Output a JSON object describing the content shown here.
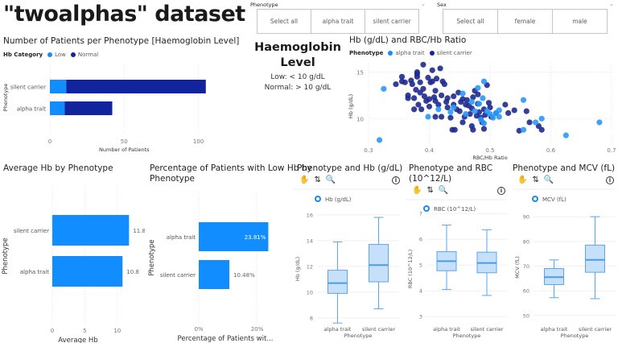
{
  "page_title": "\"twoalphas\" dataset",
  "slicers": {
    "phenotype": {
      "label": "Phenotype",
      "options": [
        "Select all",
        "alpha trait",
        "silent carrier"
      ]
    },
    "sex": {
      "label": "Sex",
      "options": [
        "Select all",
        "female",
        "male"
      ]
    }
  },
  "hb_info": {
    "title_line1": "Haemoglobin",
    "title_line2": "Level",
    "low": "Low: < 10 g/dL",
    "normal": "Normal: > 10 g/dL"
  },
  "colors": {
    "low": "#118dff",
    "normal": "#12239e",
    "box_fill": "#c6e0fa",
    "box_stroke": "#5aa5ec"
  },
  "chart_data": [
    {
      "id": "patients_per_phenotype",
      "type": "bar",
      "stacked": true,
      "orientation": "horizontal",
      "title": "Number of Patients per Phenotype [Haemoglobin Level]",
      "legend_title": "Hb Category",
      "legend": [
        "Low",
        "Normal"
      ],
      "categories": [
        "silent carrier",
        "alpha trait"
      ],
      "series": [
        {
          "name": "Low",
          "values": [
            11,
            10
          ]
        },
        {
          "name": "Normal",
          "values": [
            94,
            32
          ]
        }
      ],
      "xlabel": "Number of Patients",
      "ylabel": "Phenotype",
      "xticks": [
        0,
        50,
        100
      ],
      "xlim": [
        0,
        110
      ]
    },
    {
      "id": "hb_vs_ratio",
      "type": "scatter",
      "title": "Hb (g/dL) and RBC/Hb Ratio",
      "legend_title": "Phenotype",
      "legend": [
        "alpha trait",
        "silent carrier"
      ],
      "xlabel": "RBC/Hb Ratio",
      "ylabel": "Hb (g/dL)",
      "xlim": [
        0.3,
        0.7
      ],
      "ylim": [
        7,
        16
      ],
      "xticks": [
        0.3,
        0.4,
        0.5,
        0.6,
        0.7
      ],
      "yticks": [
        10,
        15
      ],
      "series": [
        {
          "name": "alpha trait",
          "points": [
            [
              0.318,
              7.7
            ],
            [
              0.325,
              13.2
            ],
            [
              0.398,
              10.2
            ],
            [
              0.415,
              11.0
            ],
            [
              0.435,
              10.7
            ],
            [
              0.44,
              11.2
            ],
            [
              0.455,
              12.7
            ],
            [
              0.46,
              10.5
            ],
            [
              0.47,
              11.8
            ],
            [
              0.475,
              10.8
            ],
            [
              0.48,
              13.3
            ],
            [
              0.482,
              11.6
            ],
            [
              0.485,
              9.9
            ],
            [
              0.488,
              12.2
            ],
            [
              0.49,
              14.0
            ],
            [
              0.49,
              9.5
            ],
            [
              0.495,
              10.8
            ],
            [
              0.5,
              10.5
            ],
            [
              0.505,
              10.1
            ],
            [
              0.51,
              10.6
            ],
            [
              0.515,
              10.2
            ],
            [
              0.515,
              10.9
            ],
            [
              0.555,
              12.0
            ],
            [
              0.555,
              8.8
            ],
            [
              0.575,
              9.6
            ],
            [
              0.585,
              10.0
            ],
            [
              0.625,
              8.2
            ],
            [
              0.68,
              9.6
            ]
          ]
        },
        {
          "name": "silent carrier",
          "points": [
            [
              0.345,
              13.7
            ],
            [
              0.355,
              14.0
            ],
            [
              0.355,
              14.5
            ],
            [
              0.36,
              13.9
            ],
            [
              0.365,
              12.5
            ],
            [
              0.365,
              12.2
            ],
            [
              0.37,
              14.1
            ],
            [
              0.372,
              13.7
            ],
            [
              0.375,
              11.0
            ],
            [
              0.375,
              12.2
            ],
            [
              0.378,
              13.1
            ],
            [
              0.38,
              14.8
            ],
            [
              0.38,
              15.0
            ],
            [
              0.38,
              14.5
            ],
            [
              0.382,
              11.5
            ],
            [
              0.385,
              12.8
            ],
            [
              0.385,
              13.9
            ],
            [
              0.387,
              11.0
            ],
            [
              0.39,
              15.8
            ],
            [
              0.39,
              13.2
            ],
            [
              0.392,
              12.4
            ],
            [
              0.395,
              11.9
            ],
            [
              0.398,
              14.4
            ],
            [
              0.4,
              11.3
            ],
            [
              0.4,
              12.1
            ],
            [
              0.402,
              13.9
            ],
            [
              0.405,
              14.0
            ],
            [
              0.405,
              15.2
            ],
            [
              0.408,
              12.3
            ],
            [
              0.41,
              11.9
            ],
            [
              0.41,
              13.0
            ],
            [
              0.41,
              10.2
            ],
            [
              0.412,
              14.3
            ],
            [
              0.415,
              11.5
            ],
            [
              0.418,
              15.4
            ],
            [
              0.42,
              12.5
            ],
            [
              0.42,
              10.2
            ],
            [
              0.422,
              14.0
            ],
            [
              0.425,
              13.7
            ],
            [
              0.428,
              11.8
            ],
            [
              0.43,
              12.2
            ],
            [
              0.43,
              11.2
            ],
            [
              0.435,
              10.1
            ],
            [
              0.438,
              8.8
            ],
            [
              0.44,
              12.4
            ],
            [
              0.44,
              11.5
            ],
            [
              0.442,
              8.8
            ],
            [
              0.445,
              11.0
            ],
            [
              0.448,
              12.8
            ],
            [
              0.45,
              10.8
            ],
            [
              0.452,
              11.8
            ],
            [
              0.455,
              9.6
            ],
            [
              0.455,
              12.1
            ],
            [
              0.458,
              10.2
            ],
            [
              0.46,
              11.5
            ],
            [
              0.462,
              12.0
            ],
            [
              0.465,
              11.4
            ],
            [
              0.467,
              10.5
            ],
            [
              0.47,
              11.1
            ],
            [
              0.47,
              9.2
            ],
            [
              0.472,
              8.8
            ],
            [
              0.472,
              12.3
            ],
            [
              0.475,
              13.0
            ],
            [
              0.478,
              10.3
            ],
            [
              0.48,
              11.6
            ],
            [
              0.48,
              12.6
            ],
            [
              0.482,
              10.7
            ],
            [
              0.485,
              10.1
            ],
            [
              0.487,
              9.6
            ],
            [
              0.49,
              11.0
            ],
            [
              0.49,
              8.9
            ],
            [
              0.492,
              10.4
            ],
            [
              0.495,
              13.6
            ],
            [
              0.498,
              11.7
            ],
            [
              0.5,
              11.2
            ],
            [
              0.502,
              10.2
            ],
            [
              0.51,
              10.6
            ],
            [
              0.525,
              11.5
            ],
            [
              0.53,
              10.6
            ],
            [
              0.54,
              10.9
            ],
            [
              0.548,
              8.7
            ],
            [
              0.56,
              10.8
            ],
            [
              0.565,
              9.6
            ],
            [
              0.58,
              9.2
            ],
            [
              0.585,
              8.8
            ]
          ]
        }
      ]
    },
    {
      "id": "avg_hb",
      "type": "bar",
      "orientation": "horizontal",
      "title": "Average Hb by Phenotype",
      "categories": [
        "silent carrier",
        "alpha trait"
      ],
      "values": [
        11.8,
        10.8
      ],
      "data_labels": [
        "11.8",
        "10.8"
      ],
      "xlabel": "Average Hb",
      "ylabel": "Phenotype",
      "xticks": [
        0,
        5,
        10
      ],
      "xlim": [
        0,
        12.5
      ]
    },
    {
      "id": "pct_low_hb",
      "type": "bar",
      "orientation": "horizontal",
      "title": "Percentage of Patients with Low Hb by Phenotype",
      "categories": [
        "alpha trait",
        "silent carrier"
      ],
      "values": [
        23.81,
        10.48
      ],
      "data_labels": [
        "23.81%",
        "10.48%"
      ],
      "xlabel": "Percentage of Patients wit...",
      "ylabel": "Phenotype",
      "xticks": [
        0,
        20
      ],
      "xtick_labels": [
        "0%",
        "20%"
      ],
      "xlim": [
        0,
        27
      ]
    },
    {
      "id": "box_hb",
      "type": "box",
      "title": "Phenotype and Hb (g/dL)",
      "legend": [
        "Hb (g/dL)"
      ],
      "categories": [
        "alpha trait",
        "silent carrier"
      ],
      "boxes": [
        {
          "min": 7.6,
          "q1": 9.9,
          "median": 10.7,
          "q3": 11.7,
          "max": 13.9
        },
        {
          "min": 8.7,
          "q1": 10.8,
          "median": 12.1,
          "q3": 13.7,
          "max": 15.8
        }
      ],
      "xlabel": "Phenotype",
      "ylabel": "Hb (g/dL)",
      "ylim": [
        7.3,
        16.3
      ],
      "yticks": [
        8,
        10,
        12,
        14,
        16
      ]
    },
    {
      "id": "box_rbc",
      "type": "box",
      "title": "Phenotype and RBC (10^12/L)",
      "legend": [
        "RBC (10^12/L)"
      ],
      "categories": [
        "alpha trait",
        "silent carrier"
      ],
      "boxes": [
        {
          "min": 4.05,
          "q1": 4.78,
          "median": 5.15,
          "q3": 5.52,
          "max": 6.55
        },
        {
          "min": 3.82,
          "q1": 4.7,
          "median": 5.08,
          "q3": 5.5,
          "max": 6.37
        }
      ],
      "xlabel": "Phenotype",
      "ylabel": "RBC (10^12/L)",
      "ylim": [
        2.6,
        7.1
      ],
      "yticks": [
        3,
        4,
        5,
        6,
        7
      ]
    },
    {
      "id": "box_mcv",
      "type": "box",
      "title": "Phenotype and MCV (fL)",
      "legend": [
        "MCV (fL)"
      ],
      "categories": [
        "alpha trait",
        "silent carrier"
      ],
      "boxes": [
        {
          "min": 57.2,
          "q1": 62.5,
          "median": 65.5,
          "q3": 69,
          "max": 72.5
        },
        {
          "min": 56.8,
          "q1": 67.5,
          "median": 72.5,
          "q3": 78.5,
          "max": 90
        }
      ],
      "xlabel": "Phenotype",
      "ylabel": "MCV (fL)",
      "ylim": [
        47,
        92
      ],
      "yticks": [
        50,
        60,
        70,
        80,
        90
      ]
    }
  ],
  "titles_split": {
    "pct_low_line1": "Percentage of Patients with Low Hb by",
    "pct_low_line2": "Phenotype",
    "rbc_line1": "Phenotype and RBC",
    "rbc_line2": "(10^12/L)"
  },
  "icons": {
    "toolbar": [
      "hand-icon",
      "sort-icon",
      "zoom-out-icon",
      "info-icon"
    ]
  }
}
